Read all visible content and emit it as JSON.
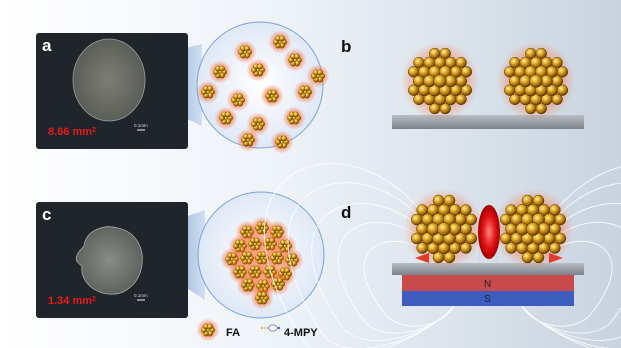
{
  "panels": {
    "a": {
      "letter": "a",
      "area_value": "8.66 mm",
      "area_unit_sup": "2",
      "scale_label": "0.1mm"
    },
    "b": {
      "letter": "b"
    },
    "c": {
      "letter": "c",
      "area_value": "1.34 mm",
      "area_unit_sup": "2",
      "scale_label": "0.1mm"
    },
    "d": {
      "letter": "d",
      "magnet_north": "N",
      "magnet_south": "S"
    }
  },
  "legend": {
    "fa_label": "FA",
    "mpy_label": "4-MPY"
  },
  "colors": {
    "micrograph_bg": "#20242b",
    "circle_fill": "#e6eefa",
    "circle_stroke": "#7aa3d6",
    "gold": "#d49a20",
    "glow": "#ff5a2a",
    "substrate": "#8a8f96",
    "magnet_north": "#c84a4a",
    "magnet_south": "#3d5cc0",
    "field_lines": "#ffffff",
    "area_text": "#e81b1b"
  }
}
